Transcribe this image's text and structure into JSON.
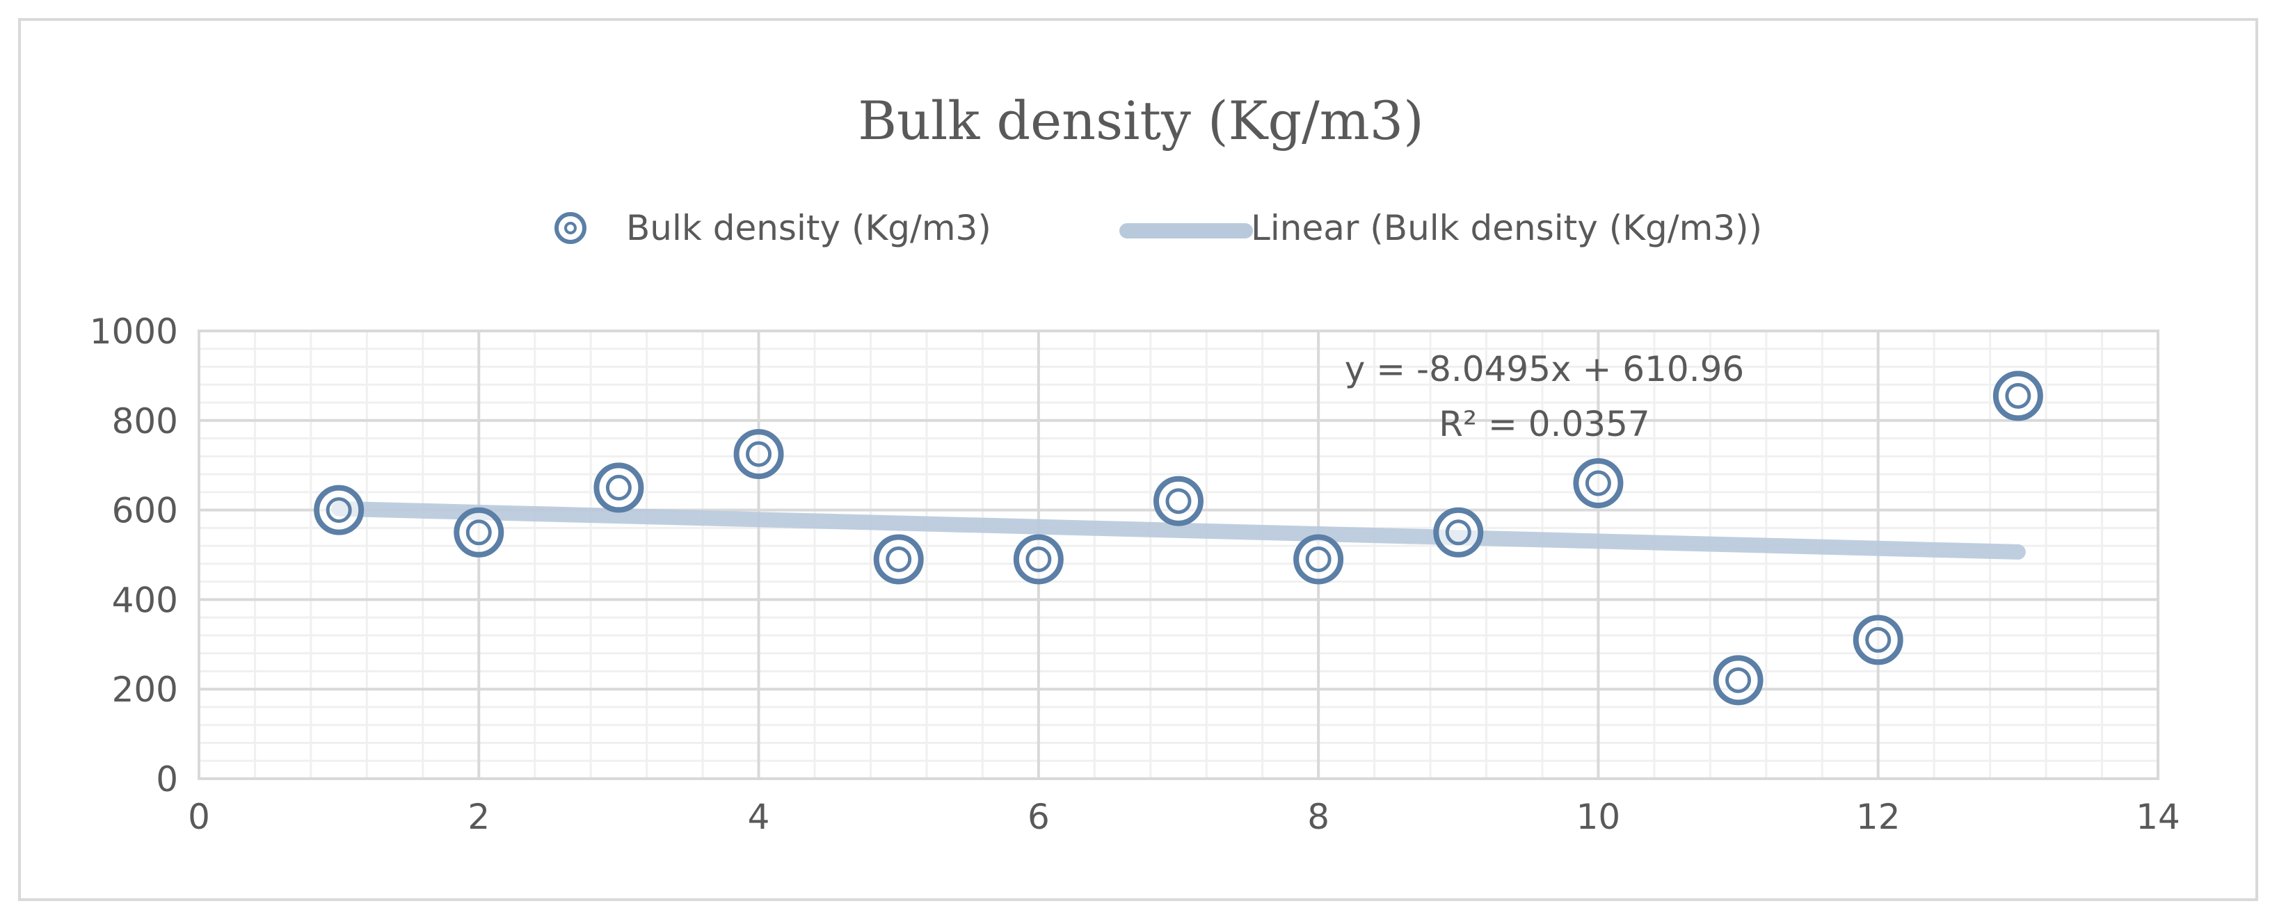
{
  "chart_data": {
    "type": "scatter",
    "title": "Bulk density (Kg/m3)",
    "xlabel": "",
    "ylabel": "",
    "xlim": [
      0,
      14
    ],
    "ylim": [
      0,
      1000
    ],
    "x_ticks": [
      0,
      2,
      4,
      6,
      8,
      10,
      12,
      14
    ],
    "y_ticks": [
      0,
      200,
      400,
      600,
      800,
      1000
    ],
    "grid": true,
    "legend_position": "top",
    "series": [
      {
        "name": "Bulk density (Kg/m3)",
        "marker": "double-circle",
        "color": "#5b7fa6",
        "x": [
          1,
          2,
          3,
          4,
          5,
          6,
          7,
          8,
          9,
          10,
          11,
          12,
          13
        ],
        "y": [
          600,
          550,
          650,
          725,
          490,
          490,
          620,
          490,
          550,
          660,
          220,
          310,
          855
        ]
      }
    ],
    "trendline": {
      "name": "Linear (Bulk density (Kg/m3))",
      "type": "linear",
      "slope": -8.0495,
      "intercept": 610.96,
      "x_range": [
        1,
        13
      ],
      "color": "#b9c9dc",
      "equation": "y = -8.0495x + 610.96",
      "r_squared": "R² = 0.0357"
    }
  }
}
